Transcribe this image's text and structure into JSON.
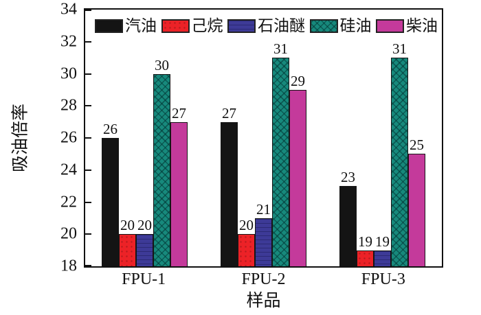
{
  "chart_data": {
    "type": "bar",
    "title": "",
    "xlabel": "样品",
    "ylabel": "吸油倍率",
    "ylim": [
      18,
      34
    ],
    "ytick_step": 2,
    "ytick_labels": [
      "18",
      "20",
      "22",
      "24",
      "26",
      "28",
      "30",
      "32",
      "34"
    ],
    "grid": false,
    "legend_position": "top-inside-horizontal",
    "categories": [
      "FPU-1",
      "FPU-2",
      "FPU-3"
    ],
    "series": [
      {
        "name": "汽油",
        "values": [
          26,
          27,
          23
        ],
        "color": "#141414",
        "pattern": "solid"
      },
      {
        "name": "己烷",
        "values": [
          20,
          20,
          19
        ],
        "color": "#EC2227",
        "pattern": "dots"
      },
      {
        "name": "石油醚",
        "values": [
          20,
          21,
          19
        ],
        "color": "#3D3A97",
        "pattern": "hlines"
      },
      {
        "name": "硅油",
        "values": [
          30,
          31,
          31
        ],
        "color": "#17897C",
        "pattern": "crosshatch"
      },
      {
        "name": "柴油",
        "values": [
          27,
          29,
          25
        ],
        "color": "#C43A9B",
        "pattern": "solid"
      }
    ],
    "bar_value_labels_shown": true,
    "axis_color": "#111111",
    "text_color": "#111111",
    "background_color": "#ffffff"
  }
}
